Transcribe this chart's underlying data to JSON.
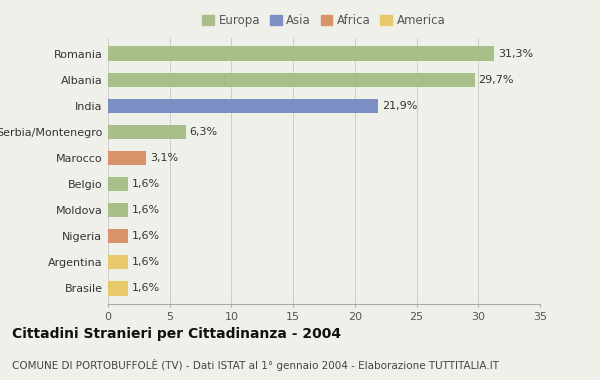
{
  "categories": [
    "Romania",
    "Albania",
    "India",
    "Serbia/Montenegro",
    "Marocco",
    "Belgio",
    "Moldova",
    "Nigeria",
    "Argentina",
    "Brasile"
  ],
  "values": [
    31.3,
    29.7,
    21.9,
    6.3,
    3.1,
    1.6,
    1.6,
    1.6,
    1.6,
    1.6
  ],
  "labels": [
    "31,3%",
    "29,7%",
    "21,9%",
    "6,3%",
    "3,1%",
    "1,6%",
    "1,6%",
    "1,6%",
    "1,6%",
    "1,6%"
  ],
  "colors": [
    "#a8bf8a",
    "#a8bf8a",
    "#7b8fc4",
    "#a8bf8a",
    "#d9936a",
    "#a8bf8a",
    "#a8bf8a",
    "#d9936a",
    "#e8c96a",
    "#e8c96a"
  ],
  "legend_labels": [
    "Europa",
    "Asia",
    "Africa",
    "America"
  ],
  "legend_colors": [
    "#a8bf8a",
    "#7b8fc4",
    "#d9936a",
    "#e8c96a"
  ],
  "title": "Cittadini Stranieri per Cittadinanza - 2004",
  "subtitle": "COMUNE DI PORTOBUFFOLÈ (TV) - Dati ISTAT al 1° gennaio 2004 - Elaborazione TUTTITALIA.IT",
  "xlim": [
    0,
    35
  ],
  "xticks": [
    0,
    5,
    10,
    15,
    20,
    25,
    30,
    35
  ],
  "background_color": "#f0f0eb",
  "plot_background": "#f0f0eb",
  "grid_color": "#cccccc",
  "title_fontsize": 10,
  "subtitle_fontsize": 7.5,
  "label_fontsize": 8,
  "tick_fontsize": 8,
  "legend_fontsize": 8.5,
  "bar_height": 0.55
}
